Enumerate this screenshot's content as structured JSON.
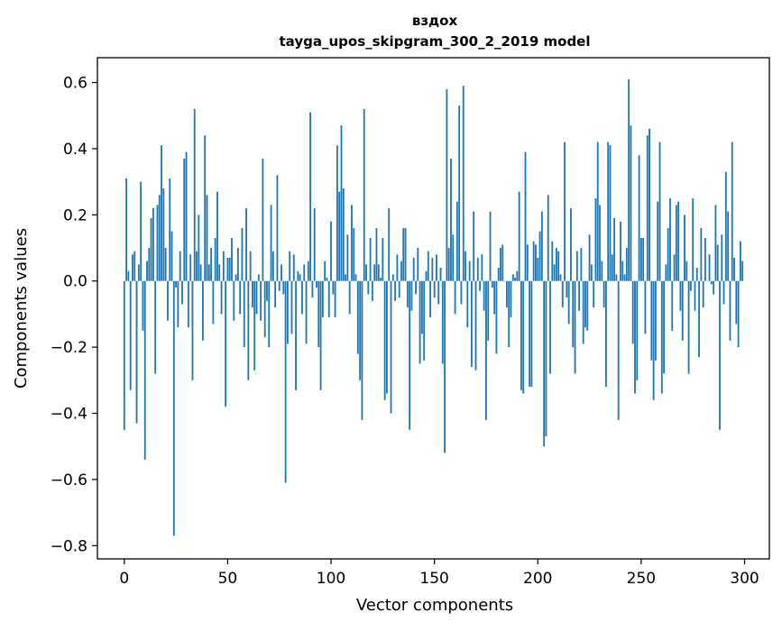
{
  "chart_data": {
    "type": "bar",
    "title_line1": "вздох",
    "title_line2": "tayga_upos_skipgram_300_2_2019 model",
    "xlabel": "Vector components",
    "ylabel": "Components values",
    "xlim": [
      -13,
      312
    ],
    "ylim": [
      -0.84,
      0.675
    ],
    "xticks": [
      0,
      50,
      100,
      150,
      200,
      250,
      300
    ],
    "xtick_labels": [
      "0",
      "50",
      "100",
      "150",
      "200",
      "250",
      "300"
    ],
    "yticks": [
      0.6,
      0.4,
      0.2,
      0.0,
      -0.2,
      -0.4,
      -0.6,
      -0.8
    ],
    "ytick_labels": [
      "0.6",
      "0.4",
      "0.2",
      "0.0",
      "−0.2",
      "−0.4",
      "−0.6",
      "−0.8"
    ],
    "bar_color": "#1f77b4",
    "bar_width": 0.8,
    "values": [
      -0.45,
      0.31,
      0.03,
      -0.33,
      0.08,
      0.09,
      -0.43,
      0.05,
      0.3,
      -0.15,
      -0.54,
      0.06,
      0.1,
      0.19,
      0.22,
      -0.28,
      0.23,
      0.26,
      0.41,
      0.28,
      0.1,
      -0.12,
      0.31,
      0.15,
      -0.77,
      -0.02,
      -0.14,
      0.09,
      -0.07,
      0.37,
      0.39,
      -0.14,
      0.08,
      -0.3,
      0.52,
      0.09,
      0.2,
      0.05,
      -0.18,
      0.44,
      0.26,
      0.05,
      0.1,
      -0.13,
      0.13,
      0.27,
      0.05,
      -0.1,
      0.09,
      -0.38,
      0.07,
      0.07,
      0.13,
      -0.12,
      0.02,
      0.1,
      -0.1,
      0.16,
      -0.2,
      0.22,
      -0.3,
      0.09,
      -0.08,
      -0.27,
      -0.1,
      0.02,
      -0.12,
      0.37,
      -0.17,
      -0.06,
      -0.2,
      0.23,
      0.09,
      -0.08,
      0.32,
      -0.03,
      0.05,
      -0.04,
      -0.61,
      -0.19,
      0.09,
      -0.16,
      0.08,
      -0.33,
      0.03,
      0.02,
      -0.1,
      0.05,
      -0.19,
      0.06,
      0.51,
      -0.05,
      0.22,
      -0.02,
      -0.2,
      -0.33,
      -0.11,
      0.06,
      0.01,
      -0.11,
      0.18,
      -0.04,
      -0.11,
      0.41,
      0.27,
      0.47,
      0.28,
      0.02,
      0.14,
      -0.1,
      0.23,
      0.16,
      0.02,
      -0.22,
      -0.3,
      -0.42,
      0.52,
      0.05,
      -0.04,
      0.13,
      -0.06,
      0.05,
      0.16,
      0.05,
      0.01,
      0.13,
      -0.36,
      -0.34,
      0.22,
      -0.4,
      0.02,
      -0.06,
      0.08,
      -0.05,
      0.06,
      0.16,
      0.16,
      -0.08,
      -0.45,
      -0.09,
      0.07,
      -0.04,
      0.1,
      -0.25,
      -0.16,
      -0.24,
      0.03,
      0.09,
      -0.11,
      0.07,
      -0.05,
      0.08,
      -0.07,
      0.04,
      -0.25,
      -0.52,
      0.58,
      0.1,
      0.37,
      0.14,
      -0.1,
      0.24,
      0.53,
      -0.07,
      0.59,
      0.09,
      -0.14,
      0.06,
      -0.26,
      0.21,
      -0.27,
      0.07,
      -0.03,
      0.08,
      -0.09,
      -0.42,
      -0.18,
      0.21,
      -0.02,
      -0.1,
      -0.22,
      0.04,
      0.1,
      0.11,
      0.0,
      -0.08,
      -0.2,
      -0.11,
      0.02,
      0.01,
      0.03,
      0.27,
      -0.33,
      -0.34,
      0.39,
      0.11,
      -0.32,
      -0.32,
      0.12,
      0.11,
      0.07,
      0.15,
      0.21,
      -0.5,
      -0.47,
      0.26,
      -0.28,
      0.12,
      0.05,
      0.1,
      0.09,
      0.02,
      -0.08,
      0.42,
      -0.05,
      -0.13,
      0.22,
      -0.2,
      -0.28,
      0.09,
      -0.09,
      0.1,
      -0.19,
      -0.14,
      -0.15,
      0.14,
      0.05,
      -0.08,
      0.25,
      0.42,
      0.23,
      0.06,
      -0.08,
      -0.32,
      0.42,
      0.41,
      0.08,
      0.19,
      0.02,
      -0.42,
      0.18,
      0.06,
      0.02,
      0.1,
      0.61,
      0.47,
      -0.19,
      -0.34,
      -0.3,
      0.38,
      0.13,
      0.13,
      -0.16,
      0.44,
      0.46,
      -0.24,
      -0.36,
      -0.24,
      0.24,
      0.42,
      -0.34,
      -0.28,
      0.05,
      0.16,
      0.25,
      -0.15,
      0.08,
      0.23,
      0.24,
      -0.09,
      -0.18,
      0.2,
      0.06,
      -0.28,
      -0.03,
      0.25,
      -0.09,
      0.04,
      -0.23,
      0.16,
      -0.08,
      0.13,
      0.0,
      0.08,
      -0.01,
      -0.04,
      0.23,
      0.11,
      -0.45,
      0.14,
      -0.07,
      0.33,
      0.21,
      -0.18,
      0.42,
      0.07,
      -0.13,
      -0.2,
      0.12,
      0.06
    ]
  }
}
